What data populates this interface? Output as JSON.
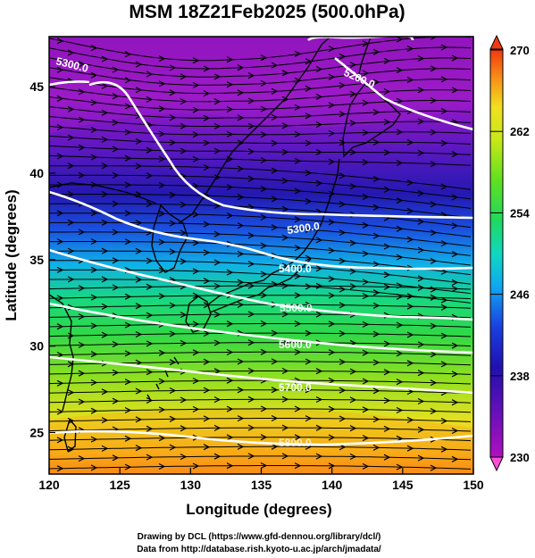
{
  "title": "MSM 18Z21Feb2025 (500.0hPa)",
  "xlabel": "Longitude (degrees)",
  "ylabel": "Latitude  (degrees)",
  "x_ticks": [
    "120",
    "125",
    "130",
    "135",
    "140",
    "145",
    "150"
  ],
  "y_ticks": [
    "25",
    "30",
    "35",
    "40",
    "45"
  ],
  "colorbar": {
    "ticks": [
      "270",
      "262",
      "254",
      "246",
      "238",
      "230"
    ],
    "min": 230,
    "max": 270,
    "colors": [
      "#ff4fd8",
      "#c020c8",
      "#7a10b8",
      "#2a10b0",
      "#1a40e0",
      "#10a8f0",
      "#10d8c0",
      "#20d860",
      "#60e020",
      "#b0e818",
      "#f0e020",
      "#f8b018",
      "#f87018",
      "#f03a10"
    ]
  },
  "contours": [
    {
      "label": "5300.0"
    },
    {
      "label": "5200.0"
    },
    {
      "label": "5300.0"
    },
    {
      "label": "5400.0"
    },
    {
      "label": "5500.0"
    },
    {
      "label": "5600.0"
    },
    {
      "label": "5700.0"
    },
    {
      "label": "5800.0"
    }
  ],
  "footer": {
    "line1": "Drawing by DCL (https://www.gfd-dennou.org/library/dcl/)",
    "line2": "Data from http://database.rish.kyoto-u.ac.jp/arch/jmadata/"
  },
  "colors": {
    "contour": "#ffffff",
    "streamline": "#000000",
    "coast": "#000000"
  }
}
